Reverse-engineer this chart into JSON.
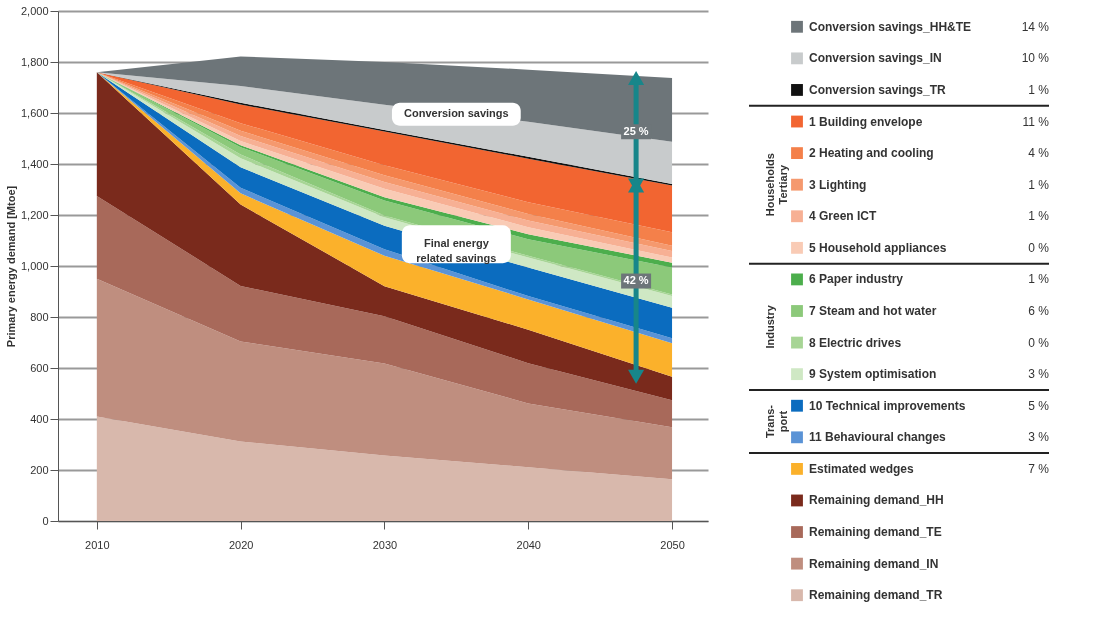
{
  "chart_data": {
    "type": "area",
    "stacked": true,
    "ylabel": "Primary energy demand [Mtoe]",
    "x": [
      2010,
      2020,
      2030,
      2040,
      2050
    ],
    "xlim": [
      2007.3,
      2052.5
    ],
    "xticks": [
      2010,
      2020,
      2030,
      2040,
      2050
    ],
    "ylim": [
      0,
      2000
    ],
    "yticks": [
      0,
      200,
      400,
      600,
      800,
      {
        "value": 1000,
        "label": "1,000"
      },
      {
        "value": 1200,
        "label": "1,200"
      },
      {
        "value": 1400,
        "label": "1,400"
      },
      {
        "value": 1600,
        "label": "1,600"
      },
      {
        "value": 1800,
        "label": "1,800"
      },
      {
        "value": 2000,
        "label": "2,000"
      }
    ],
    "grid": "y",
    "legend": "right",
    "series": [
      {
        "name": "Remaining demand_TR",
        "color": "#d8b8ac",
        "values": [
          410,
          312,
          257,
          211,
          164
        ]
      },
      {
        "name": "Remaining demand_IN",
        "color": "#bf8e7f",
        "values": [
          540,
          392,
          361,
          250,
          204
        ]
      },
      {
        "name": "Remaining demand_TE",
        "color": "#a8695a",
        "values": [
          325,
          218,
          185,
          158,
          106
        ]
      },
      {
        "name": "Remaining demand_HH",
        "color": "#7a2a1c",
        "values": [
          485,
          319,
          118,
          131,
          92
        ]
      },
      {
        "name": "Estimated wedges",
        "color": "#fbb12b",
        "values": [
          0,
          44,
          119,
          119,
          131
        ]
      },
      {
        "name": "11 Behavioural changes",
        "color": "#5a93d6",
        "values": [
          0,
          22,
          26,
          13,
          20
        ]
      },
      {
        "name": "10 Technical improvements",
        "color": "#0b6cbf",
        "values": [
          0,
          80,
          92,
          112,
          119
        ]
      },
      {
        "name": "9 System optimisation",
        "color": "#cfe8c4",
        "values": [
          0,
          36,
          33,
          39,
          46
        ]
      },
      {
        "name": "8 Electric drives",
        "color": "#a7d595",
        "values": [
          0,
          14,
          7,
          7,
          6
        ]
      },
      {
        "name": "7 Steam and hot water",
        "color": "#8cc97a",
        "values": [
          0,
          29,
          59,
          65,
          106
        ]
      },
      {
        "name": "6 Paper industry",
        "color": "#4cae4c",
        "values": [
          0,
          8,
          13,
          20,
          19
        ]
      },
      {
        "name": "5 Household appliances",
        "color": "#f9cbb5",
        "values": [
          0,
          16,
          33,
          27,
          20
        ]
      },
      {
        "name": "4 Green ICT",
        "color": "#f7b094",
        "values": [
          0,
          20,
          26,
          26,
          26
        ]
      },
      {
        "name": "3 Lighting",
        "color": "#f5996e",
        "values": [
          0,
          20,
          27,
          26,
          20
        ]
      },
      {
        "name": "2 Heating and cooling",
        "color": "#f4804a",
        "values": [
          0,
          30,
          39,
          46,
          53
        ]
      },
      {
        "name": "1 Building envelope",
        "color": "#f26531",
        "values": [
          0,
          73,
          132,
          171,
          184
        ]
      },
      {
        "name": "Conversion savings_TR",
        "color": "#111111",
        "values": [
          0,
          7,
          6,
          7,
          6
        ]
      },
      {
        "name": "Conversion savings_IN",
        "color": "#c8cbcc",
        "values": [
          0,
          66,
          99,
          138,
          165
        ]
      },
      {
        "name": "Conversion savings_HH&TE",
        "color": "#6d7579",
        "values": [
          0,
          116,
          168,
          204,
          250
        ]
      }
    ],
    "annotations": [
      "Conversion savings",
      "Final energy related savings",
      "25 %",
      "42 %",
      "Households Tertiary",
      "Industry",
      "Trans-port",
      "14 %",
      "10 %",
      "1 %",
      "11 %",
      "4 %",
      "1 %",
      "1 %",
      "0 %",
      "1 %",
      "6 %",
      "0 %",
      "3 %",
      "5 %",
      "3 %",
      "7 %"
    ]
  }
}
